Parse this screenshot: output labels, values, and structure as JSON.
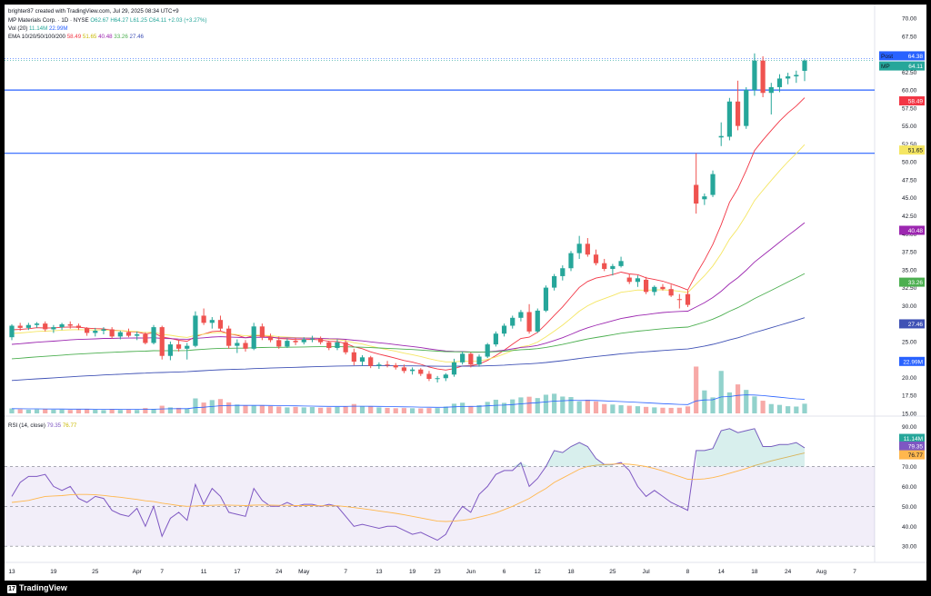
{
  "header": {
    "credit": "brighter87 created with TradingView.com, Jul 29, 2025 08:34 UTC+9",
    "symbol_line": "MP Materials Corp. · 1D · NYSE",
    "ohlc": "O62.67  H64.27  L61.25  C64.11  +2.03 (+3.27%)",
    "vol_label": "Vol (20)",
    "vol_values": [
      "11.14M",
      "22.99M"
    ],
    "ema_label": "EMA 10/20/50/100/200",
    "ema_values": [
      "58.49",
      "51.65",
      "40.48",
      "33.26",
      "27.46"
    ],
    "rsi_label": "RSI (14, close)",
    "rsi_values": [
      "79.35",
      "76.77"
    ]
  },
  "footer": {
    "brand": "TradingView"
  },
  "colors": {
    "up": "#26a69a",
    "down": "#ef5350",
    "ema10": "#f23645",
    "ema20": "#f5e663",
    "ema50": "#9c27b0",
    "ema100": "#4caf50",
    "ema200": "#3f51b5",
    "hline": "#2962ff",
    "rsi": "#7e57c2",
    "rsi_ma": "#ffb74d"
  },
  "chart_data": {
    "type": "candlestick",
    "symbol": "MP",
    "interval": "1D",
    "price_axis": [
      "70.00",
      "67.50",
      "65.00",
      "62.50",
      "60.00",
      "57.50",
      "55.00",
      "52.50",
      "50.00",
      "47.50",
      "45.00",
      "42.50",
      "40.00",
      "37.50",
      "35.00",
      "32.50",
      "30.00",
      "27.50",
      "25.00",
      "22.50",
      "20.00",
      "17.50",
      "15.00"
    ],
    "ylim": [
      15,
      70
    ],
    "price_tags": [
      {
        "label": "Post",
        "value": "64.38",
        "color": "#2962ff"
      },
      {
        "label": "MP",
        "value": "64.11",
        "color": "#26a69a"
      },
      {
        "label": "",
        "value": "58.49",
        "color": "#f23645"
      },
      {
        "label": "",
        "value": "51.65",
        "color": "#f5e663"
      },
      {
        "label": "",
        "value": "40.48",
        "color": "#9c27b0"
      },
      {
        "label": "",
        "value": "33.26",
        "color": "#4caf50"
      },
      {
        "label": "",
        "value": "27.46",
        "color": "#3f51b5"
      },
      {
        "label": "",
        "value": "22.99M",
        "color": "#2962ff"
      },
      {
        "label": "",
        "value": "11.14M",
        "color": "#26a69a"
      }
    ],
    "horizontal_lines": [
      60.0,
      51.2
    ],
    "x_ticks": [
      "13",
      "19",
      "25",
      "Apr",
      "7",
      "11",
      "17",
      "24",
      "May",
      "7",
      "13",
      "19",
      "23",
      "Jun",
      "6",
      "12",
      "18",
      "25",
      "Jul",
      "8",
      "14",
      "18",
      "24",
      "Aug",
      "7"
    ],
    "candles": [
      [
        25.6,
        27.4,
        25.2,
        27.2
      ],
      [
        27.2,
        27.6,
        26.5,
        26.9
      ],
      [
        26.9,
        27.6,
        26.6,
        27.3
      ],
      [
        27.3,
        27.7,
        26.9,
        27.5
      ],
      [
        27.5,
        27.8,
        26.4,
        26.7
      ],
      [
        26.7,
        27.3,
        26.2,
        27.0
      ],
      [
        27.0,
        27.6,
        26.6,
        27.4
      ],
      [
        27.4,
        27.8,
        26.8,
        27.2
      ],
      [
        27.2,
        27.5,
        26.6,
        26.9
      ],
      [
        26.9,
        27.0,
        25.8,
        26.2
      ],
      [
        26.2,
        26.9,
        25.7,
        26.5
      ],
      [
        26.5,
        27.0,
        26.0,
        26.7
      ],
      [
        26.7,
        27.0,
        25.4,
        25.7
      ],
      [
        25.7,
        26.5,
        25.3,
        26.3
      ],
      [
        26.3,
        26.8,
        25.6,
        25.8
      ],
      [
        25.8,
        26.4,
        25.2,
        26.0
      ],
      [
        26.0,
        26.3,
        24.6,
        24.8
      ],
      [
        24.8,
        27.3,
        24.6,
        27.0
      ],
      [
        27.0,
        27.2,
        22.5,
        23.0
      ],
      [
        23.0,
        25.0,
        22.4,
        24.6
      ],
      [
        24.6,
        25.2,
        23.6,
        24.0
      ],
      [
        24.0,
        24.8,
        22.5,
        24.4
      ],
      [
        24.4,
        29.2,
        24.2,
        28.6
      ],
      [
        28.6,
        29.6,
        27.3,
        27.6
      ],
      [
        27.6,
        28.4,
        26.8,
        28.0
      ],
      [
        28.0,
        28.6,
        26.5,
        26.8
      ],
      [
        26.8,
        27.2,
        24.0,
        24.4
      ],
      [
        24.4,
        25.3,
        23.4,
        24.8
      ],
      [
        24.8,
        25.2,
        23.6,
        24.0
      ],
      [
        24.0,
        27.6,
        23.8,
        27.1
      ],
      [
        27.1,
        27.5,
        25.2,
        25.6
      ],
      [
        25.6,
        26.1,
        24.9,
        25.2
      ],
      [
        25.2,
        25.7,
        24.0,
        24.3
      ],
      [
        24.3,
        25.4,
        24.1,
        25.1
      ],
      [
        25.1,
        25.5,
        24.5,
        24.9
      ],
      [
        24.9,
        25.6,
        24.6,
        25.3
      ],
      [
        25.3,
        25.8,
        24.9,
        25.4
      ],
      [
        25.4,
        25.7,
        24.6,
        24.9
      ],
      [
        24.9,
        25.1,
        23.8,
        24.1
      ],
      [
        24.1,
        25.3,
        23.8,
        24.9
      ],
      [
        24.9,
        25.2,
        23.2,
        23.5
      ],
      [
        23.5,
        24.0,
        21.7,
        22.2
      ],
      [
        22.2,
        23.1,
        21.6,
        22.8
      ],
      [
        22.8,
        23.0,
        21.3,
        21.6
      ],
      [
        21.6,
        22.1,
        21.2,
        21.8
      ],
      [
        21.8,
        22.3,
        21.4,
        21.7
      ],
      [
        21.7,
        22.0,
        21.1,
        21.4
      ],
      [
        21.4,
        21.8,
        20.6,
        20.9
      ],
      [
        20.9,
        21.4,
        20.4,
        21.1
      ],
      [
        21.1,
        21.3,
        20.2,
        20.5
      ],
      [
        20.5,
        20.9,
        19.5,
        19.8
      ],
      [
        19.8,
        20.2,
        19.3,
        19.9
      ],
      [
        19.9,
        20.6,
        19.5,
        20.4
      ],
      [
        20.4,
        22.6,
        20.1,
        22.1
      ],
      [
        22.1,
        23.6,
        21.8,
        23.3
      ],
      [
        23.3,
        23.5,
        21.4,
        21.8
      ],
      [
        21.8,
        23.2,
        21.5,
        22.9
      ],
      [
        22.9,
        24.8,
        22.7,
        24.6
      ],
      [
        24.6,
        26.4,
        24.3,
        26.1
      ],
      [
        26.1,
        27.5,
        25.7,
        27.2
      ],
      [
        27.2,
        28.6,
        26.8,
        28.3
      ],
      [
        28.3,
        29.4,
        27.8,
        29.1
      ],
      [
        29.1,
        30.2,
        26.1,
        26.4
      ],
      [
        26.4,
        29.6,
        26.2,
        29.3
      ],
      [
        29.3,
        32.8,
        29.1,
        32.5
      ],
      [
        32.5,
        34.4,
        32.1,
        34.1
      ],
      [
        34.1,
        35.6,
        33.5,
        35.2
      ],
      [
        35.2,
        37.6,
        34.8,
        37.3
      ],
      [
        37.3,
        39.7,
        36.5,
        38.6
      ],
      [
        38.6,
        39.4,
        36.8,
        37.1
      ],
      [
        37.1,
        37.8,
        35.6,
        35.9
      ],
      [
        35.9,
        36.5,
        34.8,
        35.1
      ],
      [
        35.1,
        35.8,
        34.2,
        35.5
      ],
      [
        35.5,
        36.8,
        35.3,
        36.2
      ],
      [
        33.9,
        34.4,
        33.0,
        33.3
      ],
      [
        33.3,
        34.2,
        32.6,
        33.8
      ],
      [
        33.6,
        34.0,
        31.6,
        31.9
      ],
      [
        31.9,
        32.8,
        31.4,
        32.6
      ],
      [
        32.6,
        33.0,
        32.1,
        32.3
      ],
      [
        32.3,
        32.9,
        31.2,
        31.4
      ],
      [
        30.9,
        31.6,
        29.6,
        30.8
      ],
      [
        31.6,
        32.1,
        29.8,
        30.1
      ],
      [
        46.8,
        51.2,
        42.8,
        44.2
      ],
      [
        44.8,
        45.6,
        44.0,
        45.2
      ],
      [
        45.4,
        48.8,
        45.1,
        48.3
      ],
      [
        53.4,
        55.5,
        52.2,
        53.6
      ],
      [
        53.5,
        58.9,
        53.0,
        58.4
      ],
      [
        58.4,
        61.3,
        54.4,
        55.0
      ],
      [
        55.0,
        60.4,
        54.6,
        60.0
      ],
      [
        60.0,
        65.1,
        59.2,
        64.1
      ],
      [
        64.1,
        64.7,
        59.0,
        59.6
      ],
      [
        59.6,
        61.0,
        56.6,
        60.4
      ],
      [
        60.4,
        62.2,
        59.7,
        61.6
      ],
      [
        61.6,
        62.4,
        60.8,
        61.9
      ],
      [
        61.9,
        62.7,
        61.0,
        62.1
      ],
      [
        62.67,
        64.27,
        61.25,
        64.11
      ]
    ],
    "volume_max": 30,
    "volume": [
      3,
      2.5,
      2.2,
      2.4,
      2.6,
      2.2,
      2.3,
      2.1,
      2.4,
      2.6,
      2.2,
      2.0,
      2.6,
      2.1,
      2.3,
      2.1,
      3.2,
      2.6,
      4.6,
      3.6,
      3.3,
      3.0,
      9,
      6.5,
      8,
      8.6,
      6.6,
      5.3,
      4.8,
      4.6,
      4.8,
      4.4,
      4.1,
      3.6,
      3.9,
      3.6,
      3.8,
      3.4,
      3.6,
      3.9,
      4.1,
      5.6,
      4.2,
      4.1,
      3.6,
      3.3,
      3.1,
      3.2,
      3.1,
      3.0,
      3.2,
      3.2,
      4.1,
      5.8,
      6.4,
      4.4,
      4.9,
      6.9,
      8.2,
      6.3,
      8.4,
      9.6,
      10,
      9.2,
      11.2,
      11.8,
      10.1,
      9.8,
      7.2,
      8.2,
      7.2,
      5.6,
      5.3,
      4.9,
      4.6,
      4.3,
      3.9,
      3.6,
      3.4,
      3.3,
      3.4,
      4.2,
      28.1,
      13.8,
      9.6,
      25.5,
      12.6,
      17.4,
      14.1,
      10.2,
      7.6,
      5.6,
      5.1,
      4.3,
      4.1,
      5.8
    ],
    "rsi_axis": [
      "90.00",
      "80.00",
      "70.00",
      "60.00",
      "50.00",
      "40.00",
      "30.00"
    ],
    "rsi_ylim": [
      26,
      93
    ],
    "rsi": [
      55,
      62,
      65,
      65,
      66,
      60,
      58,
      60,
      54,
      52,
      55,
      54,
      48,
      46,
      45,
      49,
      40,
      50,
      35,
      44,
      47,
      43,
      61,
      51,
      59,
      55,
      47,
      46,
      45,
      59,
      53,
      50,
      50,
      52,
      50,
      51,
      51,
      50,
      51,
      50,
      45,
      40,
      41,
      40,
      39,
      40,
      40,
      38,
      36,
      37,
      35,
      33,
      36,
      44,
      50,
      47,
      56,
      60,
      66,
      68,
      68,
      72,
      60,
      64,
      70,
      78,
      77,
      80,
      82,
      80,
      74,
      71,
      71,
      72,
      68,
      60,
      55,
      58,
      55,
      52,
      50,
      48,
      78,
      78,
      79,
      88,
      89,
      87,
      88,
      89,
      80,
      80,
      81,
      81,
      82,
      79.35
    ],
    "rsi_ma": [
      52,
      52.5,
      53,
      54,
      55,
      55.2,
      55.4,
      55.8,
      56,
      56,
      55.8,
      55.5,
      55,
      54.6,
      54,
      53.5,
      52.8,
      52.4,
      51.6,
      51,
      50.4,
      50,
      50.2,
      50.4,
      50.5,
      50.7,
      50.6,
      50.5,
      50.4,
      50.6,
      50.7,
      50.6,
      50.5,
      50.5,
      50.4,
      50.4,
      50.4,
      50.3,
      50.3,
      50.3,
      49.9,
      49.4,
      48.9,
      48.3,
      47.7,
      47.1,
      46.5,
      45.8,
      45,
      44.2,
      43.4,
      42.6,
      42.4,
      42.6,
      43,
      43.6,
      44.6,
      45.6,
      46.8,
      48.4,
      50,
      52,
      54,
      56.6,
      59,
      62,
      64.2,
      66.4,
      68.6,
      70,
      70.6,
      70.9,
      71.2,
      71.3,
      71.1,
      70.6,
      70,
      69,
      67.8,
      66.4,
      65,
      63.6,
      63.5,
      63.8,
      64.4,
      65.4,
      66.6,
      67.8,
      69,
      70.5,
      71.6,
      72.8,
      73.8,
      74.8,
      75.8,
      76.77
    ]
  }
}
